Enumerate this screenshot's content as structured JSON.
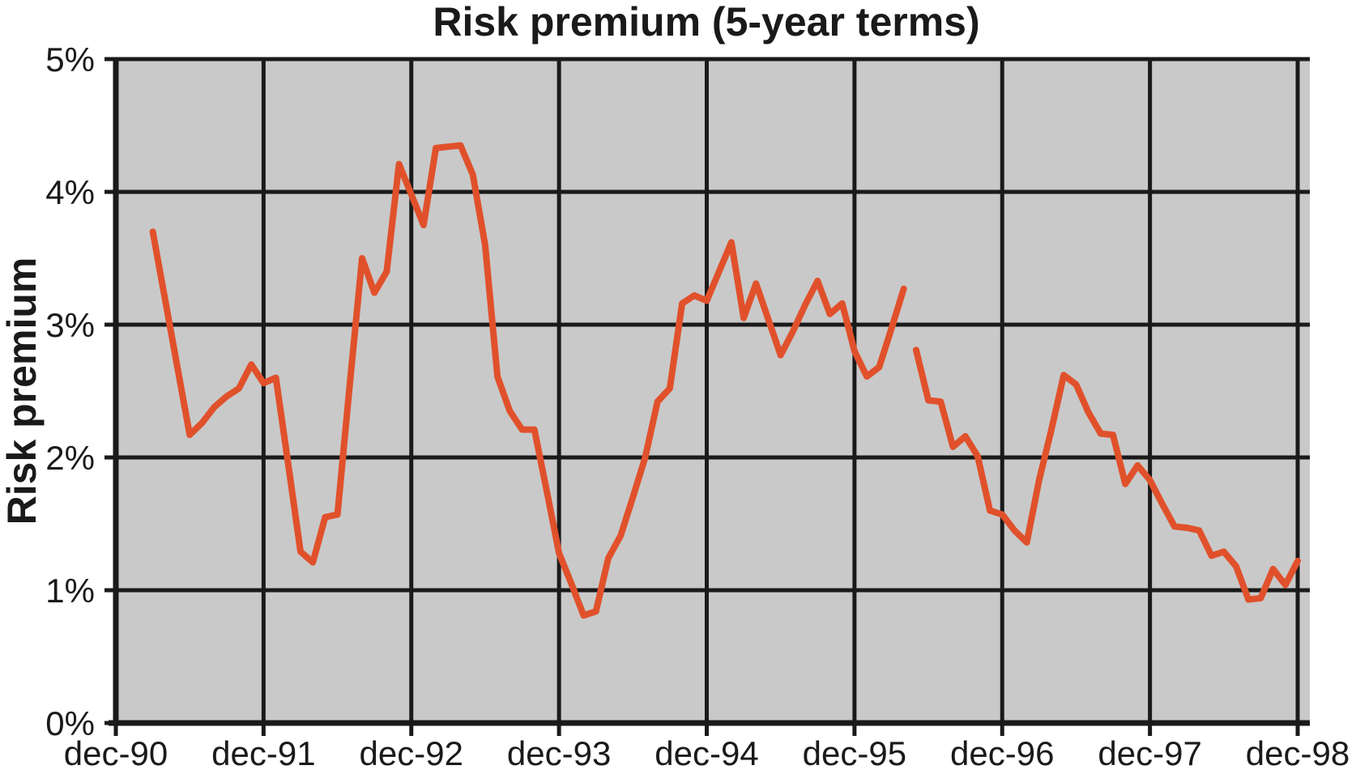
{
  "title": "Risk premium (5-year terms)",
  "y_axis_title": "Risk premium",
  "chart_data": {
    "type": "line",
    "title": "Risk premium (5-year terms)",
    "xlabel": "",
    "ylabel": "Risk premium",
    "ylim": [
      0,
      5
    ],
    "y_tick_step": 1,
    "y_tick_labels": [
      "0%",
      "1%",
      "2%",
      "3%",
      "4%",
      "5%"
    ],
    "x_unit": "months since dec-90",
    "xlim_months": [
      0,
      97
    ],
    "x_tick_months": [
      0,
      12,
      24,
      36,
      48,
      60,
      72,
      84,
      96
    ],
    "x_tick_labels": [
      "dec-90",
      "dec-91",
      "dec-92",
      "dec-93",
      "dec-94",
      "dec-95",
      "dec-96",
      "dec-97",
      "dec-98"
    ],
    "grid": true,
    "legend_position": "none",
    "line_color": "#E0512B",
    "plot_background": "#C9C9C9",
    "grid_color": "#1A1A1A",
    "axis_color": "#1A1A1A",
    "text_color": "#1A1A1A",
    "series": [
      {
        "name": "Risk premium (5-year terms)",
        "note": "monthly data; gap in line between months 64 and 65 (apr-96 / may-96)",
        "segments": [
          [
            [
              3,
              3.7
            ],
            [
              4,
              3.19
            ],
            [
              5,
              2.68
            ],
            [
              6,
              2.17
            ],
            [
              7,
              2.26
            ],
            [
              8,
              2.38
            ],
            [
              9,
              2.46
            ],
            [
              10,
              2.52
            ],
            [
              11,
              2.7
            ],
            [
              12,
              2.56
            ],
            [
              13,
              2.6
            ],
            [
              14,
              1.95
            ],
            [
              15,
              1.29
            ],
            [
              16,
              1.21
            ],
            [
              17,
              1.55
            ],
            [
              18,
              1.57
            ],
            [
              19,
              2.55
            ],
            [
              20,
              3.5
            ],
            [
              21,
              3.24
            ],
            [
              22,
              3.4
            ],
            [
              23,
              4.21
            ],
            [
              24,
              3.98
            ],
            [
              25,
              3.75
            ],
            [
              26,
              4.33
            ],
            [
              27,
              4.34
            ],
            [
              28,
              4.35
            ],
            [
              29,
              4.13
            ],
            [
              30,
              3.6
            ],
            [
              31,
              2.61
            ],
            [
              32,
              2.35
            ],
            [
              33,
              2.21
            ],
            [
              34,
              2.21
            ],
            [
              35,
              1.75
            ],
            [
              36,
              1.28
            ],
            [
              37,
              1.05
            ],
            [
              38,
              0.81
            ],
            [
              39,
              0.84
            ],
            [
              40,
              1.24
            ],
            [
              41,
              1.41
            ],
            [
              42,
              1.7
            ],
            [
              43,
              2.0
            ],
            [
              44,
              2.42
            ],
            [
              45,
              2.52
            ],
            [
              46,
              3.16
            ],
            [
              47,
              3.22
            ],
            [
              48,
              3.18
            ],
            [
              49,
              3.4
            ],
            [
              50,
              3.62
            ],
            [
              51,
              3.05
            ],
            [
              52,
              3.31
            ],
            [
              53,
              3.04
            ],
            [
              54,
              2.77
            ],
            [
              55,
              2.95
            ],
            [
              56,
              3.15
            ],
            [
              57,
              3.33
            ],
            [
              58,
              3.08
            ],
            [
              59,
              3.16
            ],
            [
              60,
              2.8
            ],
            [
              61,
              2.61
            ],
            [
              62,
              2.68
            ],
            [
              63,
              2.97
            ],
            [
              64,
              3.27
            ]
          ],
          [
            [
              65,
              2.81
            ],
            [
              66,
              2.43
            ],
            [
              67,
              2.42
            ],
            [
              68,
              2.08
            ],
            [
              69,
              2.16
            ],
            [
              70,
              2.01
            ],
            [
              71,
              1.6
            ],
            [
              72,
              1.57
            ],
            [
              73,
              1.45
            ],
            [
              74,
              1.36
            ],
            [
              75,
              1.83
            ],
            [
              76,
              2.21
            ],
            [
              77,
              2.62
            ],
            [
              78,
              2.55
            ],
            [
              79,
              2.34
            ],
            [
              80,
              2.18
            ],
            [
              81,
              2.17
            ],
            [
              82,
              1.8
            ],
            [
              83,
              1.94
            ],
            [
              84,
              1.83
            ],
            [
              85,
              1.65
            ],
            [
              86,
              1.48
            ],
            [
              87,
              1.47
            ],
            [
              88,
              1.45
            ],
            [
              89,
              1.26
            ],
            [
              90,
              1.29
            ],
            [
              91,
              1.18
            ],
            [
              92,
              0.93
            ],
            [
              93,
              0.94
            ],
            [
              94,
              1.16
            ],
            [
              95,
              1.04
            ],
            [
              96,
              1.22
            ]
          ]
        ]
      }
    ]
  }
}
